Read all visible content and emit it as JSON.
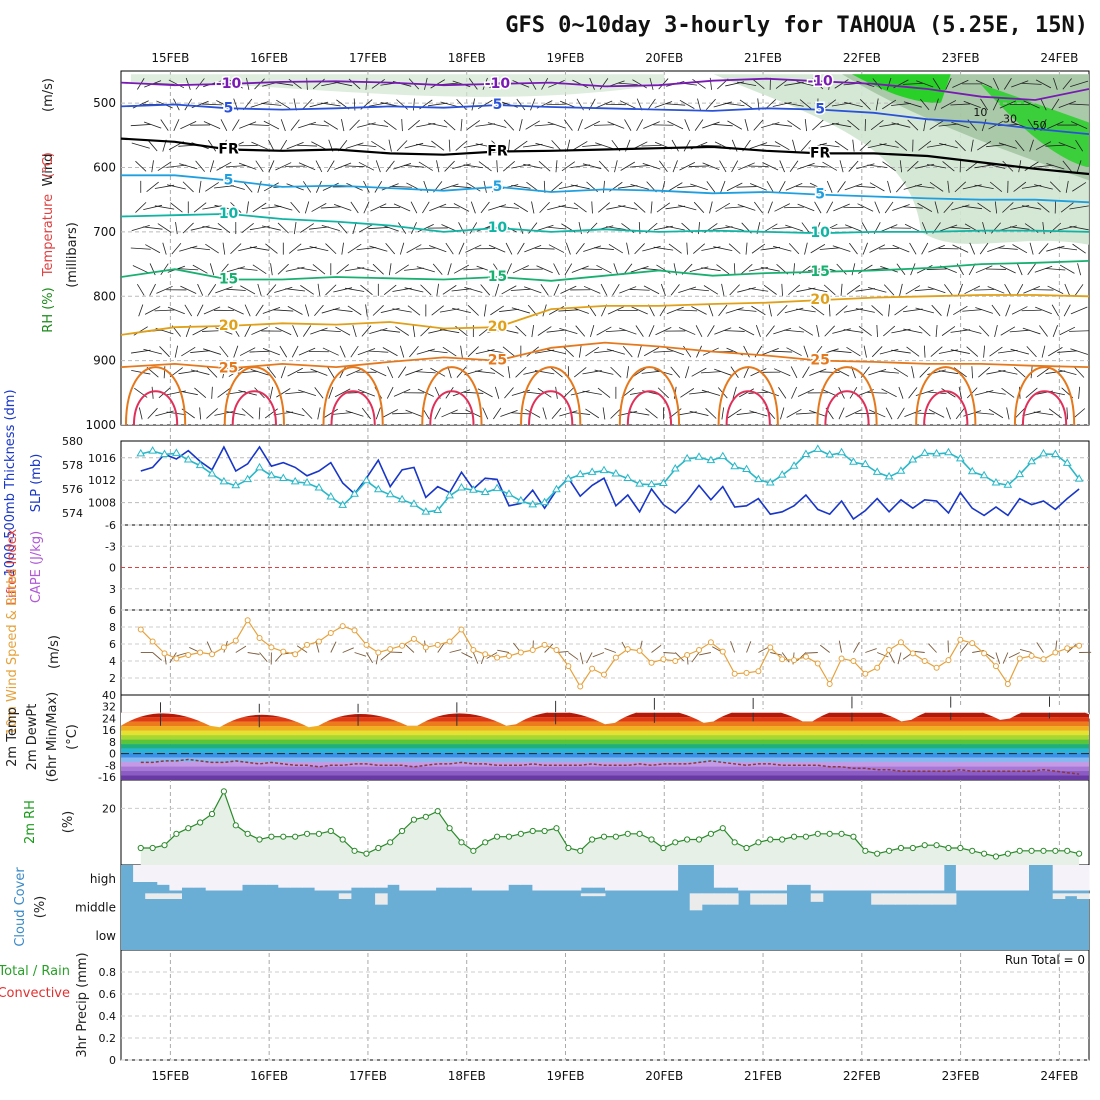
{
  "title": "GFS 0~10day 3-hourly for TAHOUA (5.25E, 15N)",
  "chart_data": [
    {
      "panel": "upper-air",
      "type": "contour",
      "days": [
        "15FEB",
        "16FEB",
        "17FEB",
        "18FEB",
        "19FEB",
        "20FEB",
        "21FEB",
        "22FEB",
        "23FEB",
        "24FEB"
      ],
      "x_range_days": [
        -0.5,
        9.3
      ],
      "ylabel_wind": "Wind",
      "ylabel_wind_units": "(m/s)",
      "ylabel_temp": "Temperature",
      "ylabel_temp_units": "(°C)",
      "ylabel_rh": "RH (%)",
      "ylabel_pressure": "(millibars)",
      "pressure_ticks": [
        500,
        600,
        700,
        800,
        900,
        1000
      ],
      "ylim": [
        1000,
        450
      ],
      "isotherms": [
        {
          "label": "-10",
          "p": [
            468,
            472,
            470,
            467,
            466,
            468,
            472,
            470,
            468,
            474,
            472,
            465,
            462,
            466,
            470,
            478,
            490,
            495,
            478
          ]
        },
        {
          "label": "5",
          "p": [
            505,
            502,
            508,
            510,
            508,
            505,
            507,
            503,
            506,
            508,
            510,
            512,
            508,
            510,
            515,
            525,
            530,
            540,
            548
          ]
        },
        {
          "label": "FR",
          "p": [
            555,
            560,
            572,
            574,
            572,
            578,
            580,
            575,
            574,
            572,
            570,
            568,
            574,
            578,
            578,
            582,
            592,
            602,
            610
          ]
        },
        {
          "label": "5",
          "p": [
            612,
            612,
            620,
            630,
            628,
            632,
            636,
            630,
            638,
            634,
            636,
            640,
            638,
            642,
            645,
            648,
            650,
            650,
            654
          ]
        },
        {
          "label": "10",
          "p": [
            676,
            674,
            672,
            680,
            684,
            690,
            700,
            694,
            700,
            696,
            700,
            698,
            700,
            702,
            700,
            700,
            698,
            698,
            700
          ]
        },
        {
          "label": "15",
          "p": [
            770,
            758,
            774,
            774,
            770,
            772,
            774,
            770,
            776,
            768,
            760,
            768,
            764,
            762,
            760,
            756,
            750,
            748,
            745
          ]
        },
        {
          "label": "20",
          "p": [
            860,
            848,
            846,
            842,
            844,
            840,
            850,
            848,
            820,
            815,
            815,
            812,
            810,
            806,
            802,
            800,
            798,
            798,
            800
          ]
        },
        {
          "label": "25",
          "p": [
            910,
            905,
            912,
            905,
            910,
            902,
            895,
            900,
            880,
            872,
            878,
            886,
            892,
            900,
            902,
            905,
            905,
            908,
            910
          ]
        }
      ],
      "rh_regions": [
        "10",
        "30",
        "50"
      ]
    },
    {
      "panel": "thickness-slp",
      "type": "line",
      "ylabel": "1000-500mb Thickness (dm)",
      "ylabel_slp": "SLP (mb)",
      "thickness_ticks": [
        574,
        576,
        578,
        580
      ],
      "slp_ticks": [
        1008,
        1012,
        1016
      ],
      "series": [
        {
          "name": "Thickness (dm)",
          "ylim": [
            573,
            580
          ],
          "values": [
            577.5,
            577.8,
            578.9,
            578.5,
            579.2,
            578.3,
            577.6,
            579.5,
            577.5,
            578.1,
            579.5,
            577.9,
            578.2,
            577.8,
            577.1,
            577.5,
            578.2,
            576.5,
            575.6,
            576.9,
            578.4,
            576.2,
            577.6,
            577.8,
            575.3,
            576.2,
            575.7,
            577.4,
            576.0,
            576.9,
            576.8,
            574.6,
            574.8,
            575.9,
            574.4,
            575.9,
            576.9,
            575.4,
            576.3,
            576.9,
            574.6,
            575.5,
            574.1,
            576.0,
            574.7,
            574.0,
            575.0,
            576.3,
            575.1,
            576.2,
            574.5,
            574.6,
            575.2,
            573.9,
            574.1,
            574.6,
            575.5,
            574.3,
            573.9,
            575.0,
            573.5,
            574.2,
            575.2,
            574.1,
            575.1,
            574.4,
            575.1,
            575.0,
            574.0,
            575.7,
            574.4,
            573.8,
            574.5,
            573.8,
            575.2,
            574.7,
            575.0,
            574.3,
            575.2,
            576.0
          ]
        },
        {
          "name": "SLP (mb)",
          "ylim": [
            1004,
            1019
          ],
          "values": [
            1016.7,
            1017.2,
            1016.6,
            1016.8,
            1015.6,
            1014.6,
            1013.1,
            1011.7,
            1011.0,
            1012.1,
            1014.2,
            1012.8,
            1012.3,
            1011.7,
            1011.5,
            1010.6,
            1009.0,
            1007.5,
            1009.5,
            1011.9,
            1010.3,
            1009.4,
            1008.5,
            1007.7,
            1006.3,
            1006.6,
            1009.2,
            1010.6,
            1010.2,
            1009.8,
            1010.5,
            1009.5,
            1008.3,
            1007.6,
            1008.0,
            1010.3,
            1012.2,
            1013.0,
            1013.4,
            1013.7,
            1013.1,
            1012.3,
            1011.3,
            1011.2,
            1011.4,
            1014.0,
            1015.8,
            1016.1,
            1015.5,
            1016.2,
            1014.4,
            1013.9,
            1012.1,
            1011.5,
            1012.9,
            1014.5,
            1016.6,
            1017.5,
            1016.5,
            1016.9,
            1015.2,
            1014.8,
            1013.4,
            1012.6,
            1013.6,
            1015.6,
            1016.8,
            1016.7,
            1016.9,
            1015.8,
            1013.5,
            1012.8,
            1011.5,
            1011.1,
            1013.0,
            1015.3,
            1016.7,
            1016.6,
            1015.0,
            1012.2
          ]
        }
      ]
    },
    {
      "panel": "stability",
      "type": "line",
      "ylabel_li": "Lifted Index",
      "ylabel_cape": "CAPE (J/kg)",
      "li_ticks": [
        "-6",
        "-3",
        "0",
        "3",
        "6"
      ],
      "ylim": [
        6,
        -6
      ],
      "series": []
    },
    {
      "panel": "wind-10m",
      "type": "line",
      "ylabel": "10m Wind Speed & Barbs",
      "ylabel_units": "(m/s)",
      "ylim": [
        0,
        10
      ],
      "y_ticks": [
        2,
        4,
        6,
        8
      ],
      "series": [
        {
          "name": "10m Wind Speed (m/s)",
          "values": [
            7.7,
            6.3,
            4.9,
            4.3,
            4.7,
            5.0,
            4.8,
            5.6,
            6.4,
            8.8,
            6.7,
            5.6,
            5.1,
            4.8,
            5.9,
            6.3,
            7.3,
            8.1,
            7.6,
            5.9,
            5.0,
            5.4,
            5.8,
            6.6,
            5.6,
            5.9,
            6.3,
            7.7,
            5.3,
            4.8,
            4.4,
            4.6,
            5.0,
            5.3,
            5.9,
            5.3,
            3.4,
            1.0,
            3.1,
            2.4,
            4.4,
            5.4,
            5.2,
            3.8,
            4.2,
            4.0,
            4.7,
            5.3,
            6.2,
            5.1,
            2.5,
            2.6,
            2.8,
            5.6,
            4.2,
            4.1,
            4.5,
            3.7,
            1.3,
            4.3,
            4.0,
            2.5,
            3.2,
            5.3,
            6.2,
            4.9,
            4.0,
            3.2,
            4.1,
            6.5,
            6.1,
            4.9,
            3.4,
            1.3,
            4.3,
            4.6,
            4.2,
            5.0,
            5.5,
            5.8
          ]
        }
      ]
    },
    {
      "panel": "temperature-2m",
      "type": "area",
      "ylabel_temp": "2m Temp",
      "ylabel_dewpt": "2m DewPt",
      "ylabel_minmax": "(6hr Min/Max)",
      "ylabel_units": "(°C)",
      "ylim": [
        -18,
        40
      ],
      "y_ticks": [
        -16,
        -8,
        0,
        8,
        16,
        24,
        32,
        40
      ],
      "minmax_labels": [
        "-8",
        "-16"
      ],
      "band_colors": [
        "#6a3aa4",
        "#8a5cc4",
        "#a878d6",
        "#c49ae6",
        "#88b8f0",
        "#3a92e8",
        "#28b4d8",
        "#1fb07a",
        "#5ac43a",
        "#a8d830",
        "#e6e030",
        "#f0b020",
        "#ec7b1d",
        "#e03a14",
        "#b41a0a"
      ],
      "series": [
        {
          "name": "2m Temp max (°C)",
          "values": [
            33,
            32,
            32,
            33,
            34,
            36,
            36,
            37,
            37,
            37
          ]
        },
        {
          "name": "2m Temp min (°C)",
          "values": [
            19,
            18,
            19,
            19,
            20,
            21,
            22,
            22,
            23,
            24
          ]
        },
        {
          "name": "2m DewPt (°C)",
          "values": [
            -6,
            -6,
            -5,
            -5,
            -4,
            -5,
            -6,
            -6,
            -5,
            -6,
            -7,
            -6,
            -7,
            -8,
            -8,
            -9,
            -8,
            -8,
            -7,
            -7,
            -8,
            -8,
            -8,
            -9,
            -8,
            -7,
            -7,
            -6,
            -7,
            -7,
            -8,
            -8,
            -8,
            -7,
            -8,
            -8,
            -8,
            -8,
            -7,
            -8,
            -8,
            -8,
            -7,
            -8,
            -7,
            -7,
            -7,
            -6,
            -5,
            -6,
            -7,
            -8,
            -7,
            -7,
            -8,
            -8,
            -8,
            -8,
            -9,
            -9,
            -10,
            -10,
            -11,
            -11,
            -12,
            -12,
            -12,
            -12,
            -12,
            -11,
            -12,
            -12,
            -12,
            -12,
            -12,
            -12,
            -11,
            -12,
            -13,
            -14
          ]
        }
      ]
    },
    {
      "panel": "rh-2m",
      "type": "area",
      "ylabel": "2m RH",
      "ylabel_units": "(%)",
      "ylim": [
        0,
        30
      ],
      "y_ticks": [
        20
      ],
      "series": [
        {
          "name": "2m RH (%)",
          "values": [
            6,
            6,
            7,
            11,
            13,
            15,
            18,
            26,
            14,
            11,
            9,
            10,
            10,
            10,
            11,
            11,
            12,
            9,
            5,
            4,
            6,
            8,
            12,
            16,
            17,
            19,
            13,
            8,
            5,
            8,
            10,
            10,
            11,
            12,
            12,
            13,
            6,
            5,
            9,
            10,
            10,
            11,
            11,
            9,
            6,
            8,
            9,
            9,
            11,
            13,
            8,
            6,
            8,
            9,
            9,
            10,
            10,
            11,
            11,
            11,
            10,
            5,
            4,
            5,
            6,
            6,
            7,
            7,
            6,
            6,
            5,
            4,
            3,
            4,
            5,
            5,
            5,
            5,
            5,
            4
          ]
        }
      ]
    },
    {
      "panel": "cloud-cover",
      "type": "heatmap",
      "ylabel": "Cloud Cover",
      "ylabel_units": "(%)",
      "rows": [
        "high",
        "middle",
        "low"
      ],
      "high_clear_fraction": [
        0.0,
        0.6,
        0.6,
        0.7,
        0.9,
        0.8,
        0.8,
        0.9,
        0.9,
        0.9,
        0.7,
        0.7,
        0.7,
        0.8,
        0.8,
        0.8,
        0.9,
        0.9,
        0.9,
        0.8,
        0.8,
        0.8,
        0.7,
        0.9,
        0.9,
        0.9,
        0.8,
        0.8,
        0.8,
        0.9,
        0.9,
        0.9,
        0.7,
        0.7,
        0.9,
        0.9,
        0.9,
        0.9,
        0.8,
        0.8,
        0.9,
        0.9,
        0.9,
        0.9,
        0.9,
        0.9,
        0.0,
        0.0,
        0.0,
        0.8,
        0.8,
        0.9,
        0.9,
        0.9,
        0.9,
        0.7,
        0.7,
        0.9,
        0.9,
        0.9,
        0.9,
        0.9,
        0.9,
        0.9,
        0.9,
        0.9,
        0.9,
        0.9,
        0.0,
        0.9,
        0.9,
        0.9,
        0.9,
        0.9,
        0.9,
        0.0,
        0.0,
        0.9,
        0.9,
        0.9
      ],
      "middle_clear_fraction": [
        0.0,
        0.0,
        0.2,
        0.2,
        0.2,
        0.0,
        0.0,
        0.0,
        0.0,
        0.0,
        0.0,
        0.0,
        0.0,
        0.0,
        0.0,
        0.0,
        0.0,
        0.0,
        0.2,
        0.0,
        0.0,
        0.4,
        0.0,
        0.0,
        0.0,
        0.0,
        0.0,
        0.0,
        0.0,
        0.0,
        0.0,
        0.0,
        0.0,
        0.0,
        0.0,
        0.0,
        0.0,
        0.0,
        0.1,
        0.1,
        0.0,
        0.0,
        0.0,
        0.0,
        0.0,
        0.0,
        0.0,
        0.6,
        0.4,
        0.4,
        0.4,
        0.0,
        0.4,
        0.4,
        0.4,
        0.0,
        0.0,
        0.3,
        0.0,
        0.0,
        0.0,
        0.0,
        0.4,
        0.4,
        0.4,
        0.4,
        0.4,
        0.4,
        0.4,
        0.0,
        0.0,
        0.0,
        0.0,
        0.0,
        0.0,
        0.0,
        0.0,
        0.2,
        0.1,
        0.2
      ]
    },
    {
      "panel": "precip-3hr",
      "type": "bar",
      "ylabel_total": "Total / Rain",
      "ylabel_conv": "Convective",
      "ylabel": "3hr Precip (mm)",
      "ylim": [
        0,
        1
      ],
      "y_ticks": [
        "0",
        "0.2",
        "0.4",
        "0.6",
        "0.8"
      ],
      "run_total_label": "Run Total = 0",
      "series": [
        {
          "name": "Total / Rain (mm)",
          "values": []
        },
        {
          "name": "Convective (mm)",
          "values": []
        }
      ]
    }
  ],
  "colors": {
    "isotherm_purple": "#7a1ab4",
    "isotherm_blue": "#2a52d8",
    "isotherm_freezing": "#000000",
    "isotherm_lightblue": "#1ea0e0",
    "isotherm_teal": "#10b4a4",
    "isotherm_green": "#18b070",
    "isotherm_gold": "#e0a018",
    "isotherm_orange": "#e6781c",
    "isotherm_red": "#e0305a",
    "isotherm_magenta": "#c01a7a",
    "rh_fill": "#d0e6d0",
    "rh_fill_dark": "#8cb48c",
    "rh_fill_green": "#28d028",
    "thickness_line": "#1836c8",
    "slp_line": "#28b8c8",
    "wind_speed_line": "#e6a23c",
    "wind_barb": "#7a5a3a",
    "rh2m_line": "#2a8a2a",
    "rh2m_fill": "#e6f0e6",
    "cloud_fill": "#6aaed6",
    "cloud_clear": "#ebebeb",
    "cloud_clear_high": "#f6f2fa",
    "li_zero_line": "#e04040",
    "cape_label": "#b05ad8",
    "li_label": "#e04040",
    "precip_total_label": "#28a028",
    "precip_conv_label": "#e03030"
  }
}
